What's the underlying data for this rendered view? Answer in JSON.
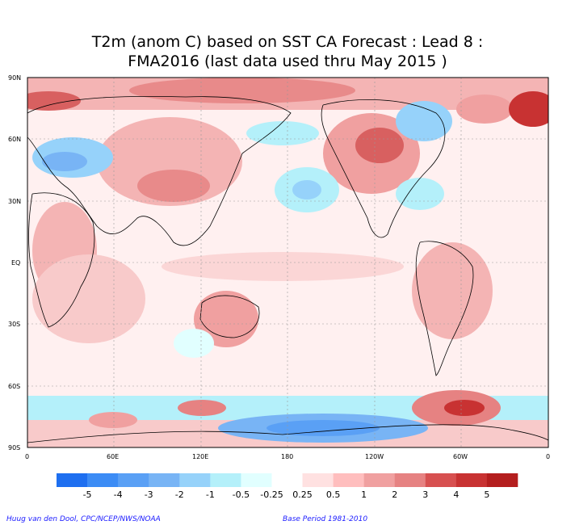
{
  "title": {
    "line1": "T2m (anom C) based on SST CA Forecast : Lead 8 :",
    "line2": "FMA2016 (last data used thru May 2015 )"
  },
  "axes": {
    "lat_labels": [
      "90N",
      "60N",
      "30N",
      "EQ",
      "30S",
      "60S",
      "90S"
    ],
    "lon_labels": [
      "0",
      "60E",
      "120E",
      "180",
      "120W",
      "60W",
      "0"
    ]
  },
  "colorbar": {
    "labels": [
      "-5",
      "-4",
      "-3",
      "-2",
      "-1",
      "-0.5",
      "-0.25",
      "0.25",
      "0.5",
      "1",
      "2",
      "3",
      "4",
      "5"
    ],
    "colors": [
      "#1e6ff0",
      "#3c8cf5",
      "#5aa0f5",
      "#78b4f5",
      "#96d2fa",
      "#b4f0fa",
      "#e1ffff",
      "#ffffff",
      "#ffe1e1",
      "#ffbebe",
      "#f0a0a0",
      "#e68282",
      "#d75050",
      "#c83232",
      "#b41e1e"
    ]
  },
  "footer": {
    "left": "Huug van den Dool, CPC/NCEP/NWS/NOAA",
    "right": "Base Period 1981-2010"
  }
}
